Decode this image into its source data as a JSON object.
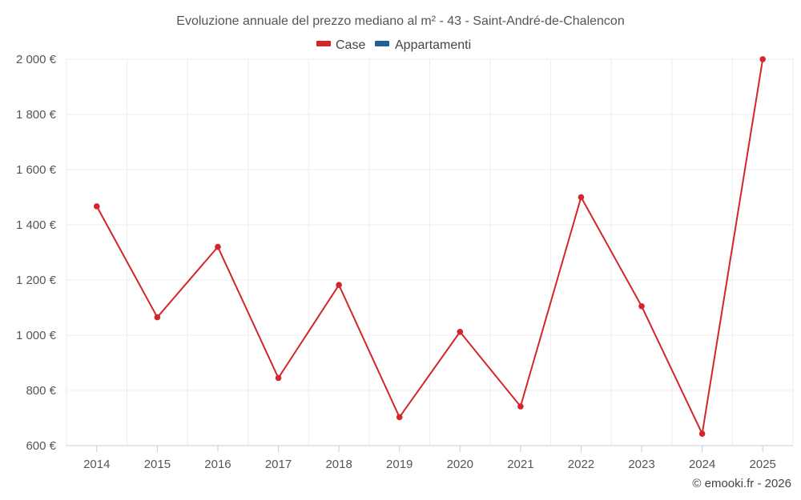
{
  "title": "Evoluzione annuale del prezzo mediano al m² - 43 - Saint-André-de-Chalencon",
  "credit": "© emooki.fr - 2026",
  "colors": {
    "case": "#d3262b",
    "appartamenti": "#1f5f9a"
  },
  "legend": [
    {
      "label": "Case",
      "color": "#d3262b"
    },
    {
      "label": "Appartamenti",
      "color": "#1f5f9a"
    }
  ],
  "chart_data": {
    "type": "line",
    "title": "Evoluzione annuale del prezzo mediano al m² - 43 - Saint-André-de-Chalencon",
    "xlabel": "",
    "ylabel": "",
    "categories": [
      "2014",
      "2015",
      "2016",
      "2017",
      "2018",
      "2019",
      "2020",
      "2021",
      "2022",
      "2023",
      "2024",
      "2025"
    ],
    "ylim": [
      600,
      2000
    ],
    "yticks": [
      600,
      800,
      1000,
      1200,
      1400,
      1600,
      1800,
      2000
    ],
    "ytick_labels": [
      "600 €",
      "800 €",
      "1 000 €",
      "1 200 €",
      "1 400 €",
      "1 600 €",
      "1 800 €",
      "2 000 €"
    ],
    "grid": true,
    "legend_position": "top-center",
    "series": [
      {
        "name": "Case",
        "color": "#d3262b",
        "values": [
          1467,
          1065,
          1320,
          845,
          1182,
          703,
          1012,
          742,
          1500,
          1105,
          643,
          2000
        ]
      },
      {
        "name": "Appartamenti",
        "color": "#1f5f9a",
        "values": [
          null,
          null,
          null,
          null,
          null,
          null,
          null,
          null,
          null,
          null,
          null,
          null
        ]
      }
    ]
  }
}
